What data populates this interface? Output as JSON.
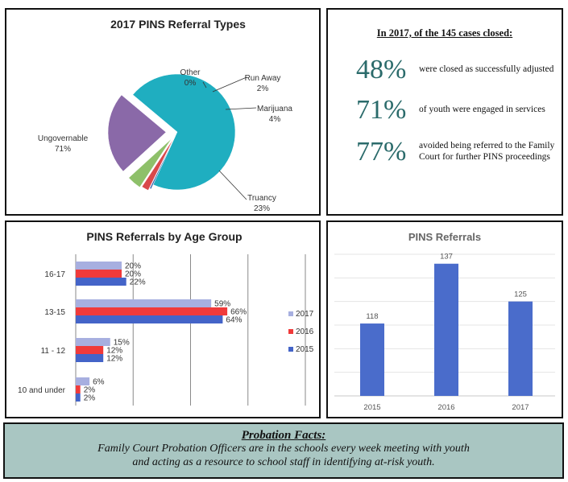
{
  "pie": {
    "chart_data": {
      "type": "pie",
      "title": "2017 PINS Referral Types",
      "slices": [
        {
          "name": "Ungovernable",
          "label": "71%",
          "value": 71,
          "color": "#1faec0"
        },
        {
          "name": "Other",
          "label": "0%",
          "value": 0.4,
          "color": "#2f5aa8"
        },
        {
          "name": "Run Away",
          "label": "2%",
          "value": 2,
          "color": "#d9484b"
        },
        {
          "name": "Marijuana",
          "label": "4%",
          "value": 4,
          "color": "#8ec06a"
        },
        {
          "name": "Truancy",
          "label": "23%",
          "value": 23,
          "color": "#8a69a8"
        }
      ]
    }
  },
  "stats": {
    "heading": "In 2017, of the 145 cases closed:",
    "items": [
      {
        "value": "48%",
        "text": "were closed as successfully adjusted"
      },
      {
        "value": "71%",
        "text": "of youth were engaged in services"
      },
      {
        "value": "77%",
        "text": "avoided being referred to the Family Court for further PINS proceedings"
      }
    ]
  },
  "age": {
    "chart_data": {
      "type": "bar",
      "orientation": "horizontal",
      "title": "PINS Referrals by Age Group",
      "categories": [
        "16-17",
        "13-15",
        "11 - 12",
        "10 and under"
      ],
      "series": [
        {
          "name": "2017",
          "color": "#a7afe0",
          "values": [
            20,
            59,
            15,
            6
          ],
          "labels": [
            "20%",
            "59%",
            "15%",
            "6%"
          ]
        },
        {
          "name": "2016",
          "color": "#f03a3a",
          "values": [
            20,
            66,
            12,
            2
          ],
          "labels": [
            "20%",
            "66%",
            "12%",
            "2%"
          ]
        },
        {
          "name": "2015",
          "color": "#4464c8",
          "values": [
            22,
            64,
            12,
            2
          ],
          "labels": [
            "22%",
            "64%",
            "12%",
            "2%"
          ]
        }
      ],
      "xlim": [
        0,
        100
      ],
      "grid": true,
      "legend": "right"
    }
  },
  "referrals": {
    "chart_data": {
      "type": "bar",
      "title": "PINS Referrals",
      "categories": [
        "2015",
        "2016",
        "2017"
      ],
      "values": [
        118,
        137,
        125
      ],
      "labels": [
        "118",
        "137",
        "125"
      ],
      "ylim": [
        95,
        140
      ],
      "color": "#4a6ccb",
      "grid": true
    }
  },
  "facts": {
    "title": "Probation Facts:",
    "line1": "Family Court Probation Officers are in the schools every week meeting with youth",
    "line2": "and acting as a resource to school staff in identifying at-risk youth."
  }
}
